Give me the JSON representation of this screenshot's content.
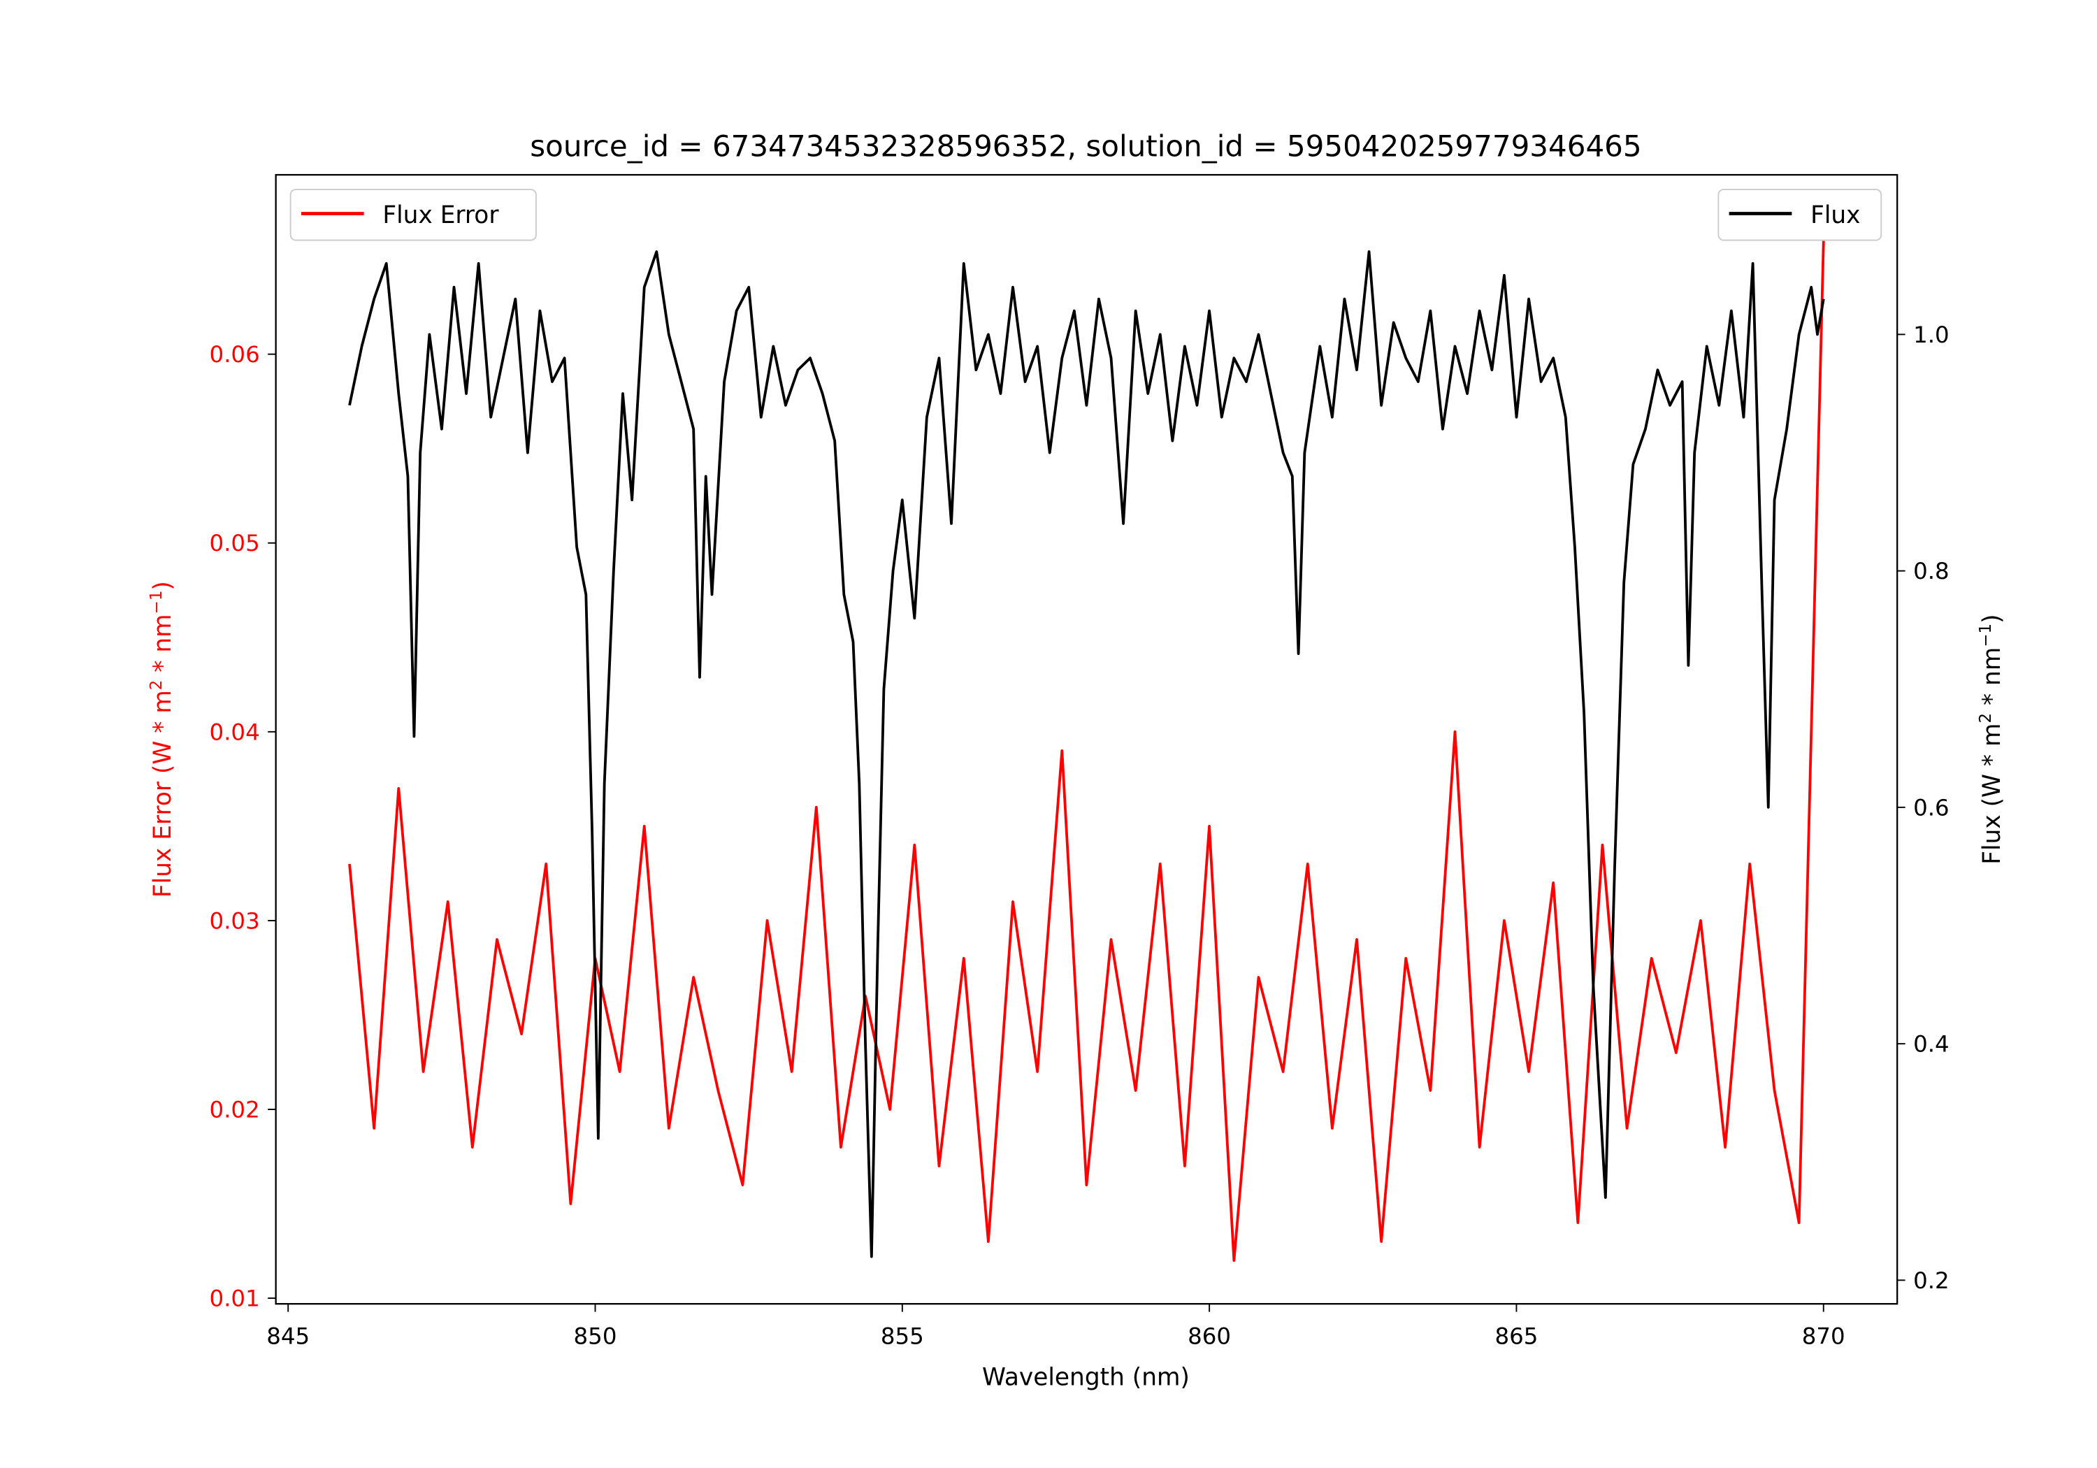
{
  "chart_data": {
    "type": "line",
    "title": "source_id = 6734734532328596352, solution_id = 5950420259779346465",
    "xlabel": "Wavelength (nm)",
    "ylabel_left": "Flux Error (W * m^2 * nm^-1)",
    "ylabel_right": "Flux (W * m^2 * nm^-1)",
    "xlim": [
      844.8,
      871.2
    ],
    "ylim_left": [
      0.0097,
      0.0695
    ],
    "ylim_right": [
      0.18,
      1.135
    ],
    "xticks": [
      "845",
      "850",
      "855",
      "860",
      "865",
      "870"
    ],
    "yticks_left": [
      "0.01",
      "0.02",
      "0.03",
      "0.04",
      "0.05",
      "0.06"
    ],
    "yticks_right": [
      "0.2",
      "0.4",
      "0.6",
      "0.8",
      "1.0"
    ],
    "grid": false,
    "legend_left": {
      "label": "Flux Error",
      "placement": "upper-left"
    },
    "legend_right": {
      "label": "Flux",
      "placement": "upper-right"
    },
    "colors": {
      "flux_error": "#ff0000",
      "flux": "#000000",
      "left_axis": "#ff0000"
    },
    "series": [
      {
        "name": "Flux",
        "axis": "right",
        "points": [
          [
            846.0,
            0.94
          ],
          [
            846.2,
            0.99
          ],
          [
            846.4,
            1.03
          ],
          [
            846.6,
            1.06
          ],
          [
            846.8,
            0.95
          ],
          [
            846.95,
            0.88
          ],
          [
            847.05,
            0.66
          ],
          [
            847.15,
            0.9
          ],
          [
            847.3,
            1.0
          ],
          [
            847.5,
            0.92
          ],
          [
            847.7,
            1.04
          ],
          [
            847.9,
            0.95
          ],
          [
            848.1,
            1.06
          ],
          [
            848.3,
            0.93
          ],
          [
            848.5,
            0.98
          ],
          [
            848.7,
            1.03
          ],
          [
            848.9,
            0.9
          ],
          [
            849.1,
            1.02
          ],
          [
            849.3,
            0.96
          ],
          [
            849.5,
            0.98
          ],
          [
            849.7,
            0.82
          ],
          [
            849.85,
            0.78
          ],
          [
            849.95,
            0.58
          ],
          [
            850.05,
            0.32
          ],
          [
            850.15,
            0.62
          ],
          [
            850.3,
            0.8
          ],
          [
            850.45,
            0.95
          ],
          [
            850.6,
            0.86
          ],
          [
            850.8,
            1.04
          ],
          [
            851.0,
            1.07
          ],
          [
            851.2,
            1.0
          ],
          [
            851.4,
            0.96
          ],
          [
            851.6,
            0.92
          ],
          [
            851.7,
            0.71
          ],
          [
            851.8,
            0.88
          ],
          [
            851.9,
            0.78
          ],
          [
            852.1,
            0.96
          ],
          [
            852.3,
            1.02
          ],
          [
            852.5,
            1.04
          ],
          [
            852.7,
            0.93
          ],
          [
            852.9,
            0.99
          ],
          [
            853.1,
            0.94
          ],
          [
            853.3,
            0.97
          ],
          [
            853.5,
            0.98
          ],
          [
            853.7,
            0.95
          ],
          [
            853.9,
            0.91
          ],
          [
            854.05,
            0.78
          ],
          [
            854.2,
            0.74
          ],
          [
            854.3,
            0.62
          ],
          [
            854.4,
            0.4
          ],
          [
            854.5,
            0.22
          ],
          [
            854.6,
            0.48
          ],
          [
            854.7,
            0.7
          ],
          [
            854.85,
            0.8
          ],
          [
            855.0,
            0.86
          ],
          [
            855.2,
            0.76
          ],
          [
            855.4,
            0.93
          ],
          [
            855.6,
            0.98
          ],
          [
            855.8,
            0.84
          ],
          [
            856.0,
            1.06
          ],
          [
            856.2,
            0.97
          ],
          [
            856.4,
            1.0
          ],
          [
            856.6,
            0.95
          ],
          [
            856.8,
            1.04
          ],
          [
            857.0,
            0.96
          ],
          [
            857.2,
            0.99
          ],
          [
            857.4,
            0.9
          ],
          [
            857.6,
            0.98
          ],
          [
            857.8,
            1.02
          ],
          [
            858.0,
            0.94
          ],
          [
            858.2,
            1.03
          ],
          [
            858.4,
            0.98
          ],
          [
            858.6,
            0.84
          ],
          [
            858.8,
            1.02
          ],
          [
            859.0,
            0.95
          ],
          [
            859.2,
            1.0
          ],
          [
            859.4,
            0.91
          ],
          [
            859.6,
            0.99
          ],
          [
            859.8,
            0.94
          ],
          [
            860.0,
            1.02
          ],
          [
            860.2,
            0.93
          ],
          [
            860.4,
            0.98
          ],
          [
            860.6,
            0.96
          ],
          [
            860.8,
            1.0
          ],
          [
            861.0,
            0.95
          ],
          [
            861.2,
            0.9
          ],
          [
            861.35,
            0.88
          ],
          [
            861.45,
            0.73
          ],
          [
            861.55,
            0.9
          ],
          [
            861.8,
            0.99
          ],
          [
            862.0,
            0.93
          ],
          [
            862.2,
            1.03
          ],
          [
            862.4,
            0.97
          ],
          [
            862.6,
            1.07
          ],
          [
            862.8,
            0.94
          ],
          [
            863.0,
            1.01
          ],
          [
            863.2,
            0.98
          ],
          [
            863.4,
            0.96
          ],
          [
            863.6,
            1.02
          ],
          [
            863.8,
            0.92
          ],
          [
            864.0,
            0.99
          ],
          [
            864.2,
            0.95
          ],
          [
            864.4,
            1.02
          ],
          [
            864.6,
            0.97
          ],
          [
            864.8,
            1.05
          ],
          [
            865.0,
            0.93
          ],
          [
            865.2,
            1.03
          ],
          [
            865.4,
            0.96
          ],
          [
            865.6,
            0.98
          ],
          [
            865.8,
            0.93
          ],
          [
            865.95,
            0.82
          ],
          [
            866.1,
            0.68
          ],
          [
            866.25,
            0.45
          ],
          [
            866.45,
            0.27
          ],
          [
            866.6,
            0.55
          ],
          [
            866.75,
            0.79
          ],
          [
            866.9,
            0.89
          ],
          [
            867.1,
            0.92
          ],
          [
            867.3,
            0.97
          ],
          [
            867.5,
            0.94
          ],
          [
            867.7,
            0.96
          ],
          [
            867.8,
            0.72
          ],
          [
            867.9,
            0.9
          ],
          [
            868.1,
            0.99
          ],
          [
            868.3,
            0.94
          ],
          [
            868.5,
            1.02
          ],
          [
            868.7,
            0.93
          ],
          [
            868.85,
            1.06
          ],
          [
            869.0,
            0.78
          ],
          [
            869.1,
            0.6
          ],
          [
            869.2,
            0.86
          ],
          [
            869.4,
            0.92
          ],
          [
            869.6,
            1.0
          ],
          [
            869.8,
            1.04
          ],
          [
            869.9,
            1.0
          ],
          [
            870.0,
            1.03
          ]
        ]
      },
      {
        "name": "Flux Error",
        "axis": "left",
        "x_start": 846.0,
        "x_step": 0.4,
        "values": [
          0.033,
          0.019,
          0.037,
          0.022,
          0.031,
          0.018,
          0.029,
          0.024,
          0.033,
          0.015,
          0.028,
          0.022,
          0.035,
          0.019,
          0.027,
          0.021,
          0.016,
          0.03,
          0.022,
          0.036,
          0.018,
          0.026,
          0.02,
          0.034,
          0.017,
          0.028,
          0.013,
          0.031,
          0.022,
          0.039,
          0.016,
          0.029,
          0.021,
          0.033,
          0.017,
          0.035,
          0.012,
          0.027,
          0.022,
          0.033,
          0.019,
          0.029,
          0.013,
          0.028,
          0.021,
          0.04,
          0.018,
          0.03,
          0.022,
          0.032,
          0.014,
          0.034,
          0.019,
          0.028,
          0.023,
          0.03,
          0.018,
          0.033,
          0.021,
          0.014,
          0.066
        ]
      }
    ]
  }
}
